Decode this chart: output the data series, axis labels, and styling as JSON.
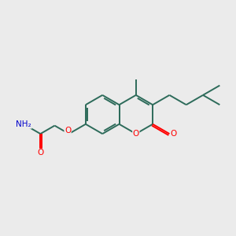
{
  "background_color": "#ebebeb",
  "bond_color": "#2d6b5a",
  "oxygen_color": "#ff0000",
  "nitrogen_color": "#0000cc",
  "carbon_color": "#2d6b5a",
  "lw": 1.4,
  "figsize": [
    3.0,
    3.0
  ],
  "dpi": 100,
  "xlim": [
    0,
    10
  ],
  "ylim": [
    0,
    10
  ]
}
